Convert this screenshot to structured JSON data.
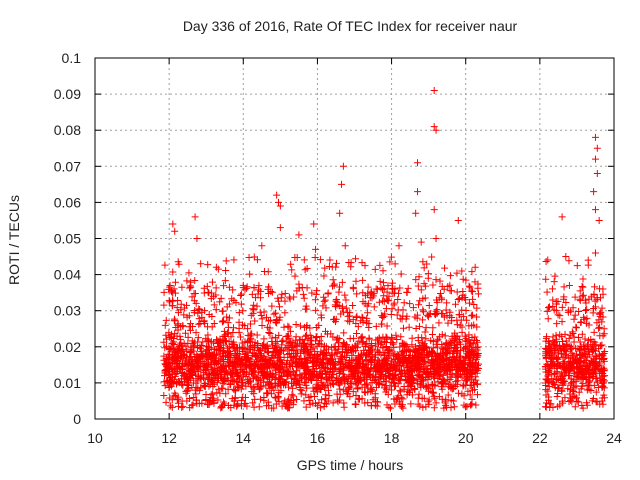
{
  "chart_data": {
    "type": "scatter",
    "title": "Day 336 of 2016, Rate Of TEC Index for receiver naur",
    "xlabel": "GPS time / hours",
    "ylabel": "ROTI / TECUs",
    "xlim": [
      10,
      24
    ],
    "ylim": [
      0,
      0.1
    ],
    "x_ticks": [
      "10",
      "12",
      "14",
      "16",
      "18",
      "20",
      "22",
      "24"
    ],
    "y_ticks": [
      "0",
      "0.01",
      "0.02",
      "0.03",
      "0.04",
      "0.05",
      "0.06",
      "0.07",
      "0.08",
      "0.09",
      "0.1"
    ],
    "grid": true,
    "marker": "+",
    "marker_color": "#ff0000",
    "segments": [
      {
        "x_start": 11.85,
        "x_end": 20.35,
        "typical_range": [
          0.005,
          0.025
        ]
      },
      {
        "x_start": 22.15,
        "x_end": 23.75,
        "typical_range": [
          0.005,
          0.025
        ]
      }
    ],
    "notable_points": [
      {
        "x": 12.1,
        "y": 0.054
      },
      {
        "x": 12.15,
        "y": 0.052
      },
      {
        "x": 12.7,
        "y": 0.056
      },
      {
        "x": 12.75,
        "y": 0.05
      },
      {
        "x": 12.85,
        "y": 0.043
      },
      {
        "x": 14.0,
        "y": 0.037
      },
      {
        "x": 14.5,
        "y": 0.048
      },
      {
        "x": 14.9,
        "y": 0.062
      },
      {
        "x": 14.95,
        "y": 0.06
      },
      {
        "x": 15.0,
        "y": 0.059
      },
      {
        "x": 15.0,
        "y": 0.053
      },
      {
        "x": 15.5,
        "y": 0.051
      },
      {
        "x": 15.9,
        "y": 0.054
      },
      {
        "x": 15.95,
        "y": 0.047
      },
      {
        "x": 16.65,
        "y": 0.065
      },
      {
        "x": 16.7,
        "y": 0.07
      },
      {
        "x": 16.6,
        "y": 0.057
      },
      {
        "x": 16.75,
        "y": 0.048
      },
      {
        "x": 18.2,
        "y": 0.048
      },
      {
        "x": 18.7,
        "y": 0.071
      },
      {
        "x": 18.7,
        "y": 0.063
      },
      {
        "x": 18.65,
        "y": 0.057
      },
      {
        "x": 18.8,
        "y": 0.049
      },
      {
        "x": 19.15,
        "y": 0.091
      },
      {
        "x": 19.15,
        "y": 0.081
      },
      {
        "x": 19.2,
        "y": 0.08
      },
      {
        "x": 19.15,
        "y": 0.058
      },
      {
        "x": 19.2,
        "y": 0.05
      },
      {
        "x": 19.8,
        "y": 0.055
      },
      {
        "x": 20.25,
        "y": 0.038
      },
      {
        "x": 22.6,
        "y": 0.056
      },
      {
        "x": 22.7,
        "y": 0.045
      },
      {
        "x": 23.5,
        "y": 0.078
      },
      {
        "x": 23.55,
        "y": 0.075
      },
      {
        "x": 23.5,
        "y": 0.072
      },
      {
        "x": 23.55,
        "y": 0.068
      },
      {
        "x": 23.45,
        "y": 0.063
      },
      {
        "x": 23.5,
        "y": 0.058
      },
      {
        "x": 23.6,
        "y": 0.055
      },
      {
        "x": 23.5,
        "y": 0.046
      },
      {
        "x": 23.7,
        "y": 0.036
      }
    ]
  }
}
